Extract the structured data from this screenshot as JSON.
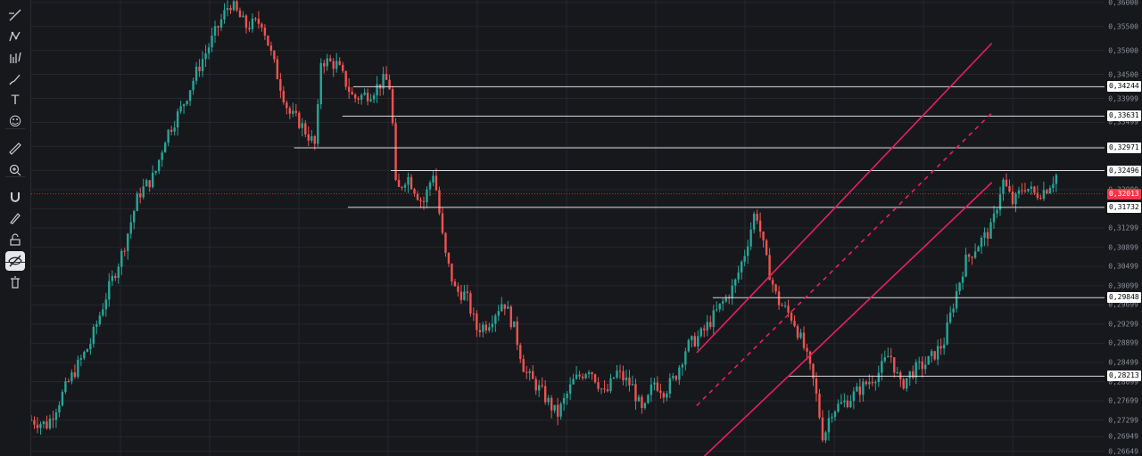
{
  "toolbar": {
    "tools": [
      {
        "name": "trend-line-tool-icon"
      },
      {
        "name": "pattern-tool-icon"
      },
      {
        "name": "forecast-tool-icon"
      },
      {
        "name": "brush-tool-icon"
      },
      {
        "name": "text-tool-icon",
        "glyph": "T"
      },
      {
        "name": "emoji-tool-icon",
        "glyph": "☺"
      },
      {
        "name": "ruler-tool-icon"
      },
      {
        "name": "zoom-in-tool-icon"
      },
      {
        "name": "magnet-mode-icon"
      },
      {
        "name": "lock-drawings-icon"
      },
      {
        "name": "unlock-icon"
      },
      {
        "name": "hide-drawings-icon",
        "active": true
      },
      {
        "name": "delete-drawings-icon"
      }
    ]
  },
  "chart_data": {
    "type": "candlestick",
    "y_axis_ticks": [
      0.36,
      0.355,
      0.35,
      0.345,
      0.33999,
      0.33499,
      0.32999,
      0.32499,
      0.32099,
      0.31699,
      0.31299,
      0.30899,
      0.30499,
      0.30099,
      0.29699,
      0.29299,
      0.28899,
      0.28499,
      0.28099,
      0.27699,
      0.27299,
      0.26949,
      0.26649
    ],
    "ylim": [
      0.2655,
      0.3605
    ],
    "grid": true,
    "current_price": {
      "value": 0.32013,
      "label": "0,32013",
      "color": "#f23645"
    },
    "horizontal_levels": [
      {
        "label": "0,34244",
        "value": 0.34244,
        "from": 0.3
      },
      {
        "label": "0,33631",
        "value": 0.33631,
        "from": 0.29
      },
      {
        "label": "0,32971",
        "value": 0.32971,
        "from": 0.245
      },
      {
        "label": "0,32496",
        "value": 0.32496,
        "from": 0.335
      },
      {
        "label": "0,31732",
        "value": 0.31732,
        "from": 0.295
      },
      {
        "label": "0,29848",
        "value": 0.29848,
        "from": 0.635
      },
      {
        "label": "0,28213",
        "value": 0.28213,
        "from": 0.705
      }
    ],
    "channel": {
      "color": "#e91e63",
      "upper": [
        [
          0.62,
          0.287
        ],
        [
          0.895,
          0.3515
        ]
      ],
      "lower": [
        [
          0.625,
          0.265
        ],
        [
          0.895,
          0.3225
        ]
      ],
      "mid": [
        [
          0.62,
          0.276
        ],
        [
          0.895,
          0.337
        ]
      ]
    },
    "candles_path": [
      [
        0.0,
        0.273
      ],
      [
        0.015,
        0.272
      ],
      [
        0.035,
        0.281
      ],
      [
        0.055,
        0.289
      ],
      [
        0.07,
        0.299
      ],
      [
        0.085,
        0.308
      ],
      [
        0.1,
        0.32
      ],
      [
        0.115,
        0.324
      ],
      [
        0.125,
        0.332
      ],
      [
        0.14,
        0.338
      ],
      [
        0.155,
        0.346
      ],
      [
        0.17,
        0.353
      ],
      [
        0.185,
        0.36
      ],
      [
        0.2,
        0.355
      ],
      [
        0.215,
        0.356
      ],
      [
        0.225,
        0.348
      ],
      [
        0.24,
        0.337
      ],
      [
        0.25,
        0.335
      ],
      [
        0.265,
        0.33
      ],
      [
        0.27,
        0.348
      ],
      [
        0.285,
        0.347
      ],
      [
        0.3,
        0.34
      ],
      [
        0.315,
        0.341
      ],
      [
        0.33,
        0.344
      ],
      [
        0.335,
        0.342
      ],
      [
        0.34,
        0.32
      ],
      [
        0.35,
        0.324
      ],
      [
        0.365,
        0.318
      ],
      [
        0.375,
        0.325
      ],
      [
        0.385,
        0.308
      ],
      [
        0.395,
        0.3
      ],
      [
        0.405,
        0.299
      ],
      [
        0.415,
        0.292
      ],
      [
        0.425,
        0.293
      ],
      [
        0.44,
        0.298
      ],
      [
        0.45,
        0.292
      ],
      [
        0.46,
        0.283
      ],
      [
        0.475,
        0.279
      ],
      [
        0.49,
        0.274
      ],
      [
        0.505,
        0.281
      ],
      [
        0.52,
        0.284
      ],
      [
        0.535,
        0.278
      ],
      [
        0.545,
        0.283
      ],
      [
        0.56,
        0.28
      ],
      [
        0.57,
        0.274
      ],
      [
        0.58,
        0.281
      ],
      [
        0.59,
        0.279
      ],
      [
        0.6,
        0.282
      ],
      [
        0.61,
        0.288
      ],
      [
        0.625,
        0.291
      ],
      [
        0.64,
        0.296
      ],
      [
        0.655,
        0.301
      ],
      [
        0.665,
        0.308
      ],
      [
        0.675,
        0.317
      ],
      [
        0.685,
        0.306
      ],
      [
        0.695,
        0.298
      ],
      [
        0.71,
        0.294
      ],
      [
        0.72,
        0.288
      ],
      [
        0.725,
        0.284
      ],
      [
        0.73,
        0.28
      ],
      [
        0.738,
        0.269
      ],
      [
        0.745,
        0.275
      ],
      [
        0.76,
        0.277
      ],
      [
        0.775,
        0.28
      ],
      [
        0.79,
        0.283
      ],
      [
        0.8,
        0.287
      ],
      [
        0.81,
        0.28
      ],
      [
        0.82,
        0.283
      ],
      [
        0.835,
        0.285
      ],
      [
        0.85,
        0.289
      ],
      [
        0.86,
        0.298
      ],
      [
        0.87,
        0.306
      ],
      [
        0.88,
        0.309
      ],
      [
        0.895,
        0.313
      ],
      [
        0.905,
        0.323
      ],
      [
        0.915,
        0.318
      ],
      [
        0.925,
        0.322
      ],
      [
        0.935,
        0.32
      ],
      [
        0.945,
        0.321
      ],
      [
        0.955,
        0.324
      ]
    ]
  }
}
